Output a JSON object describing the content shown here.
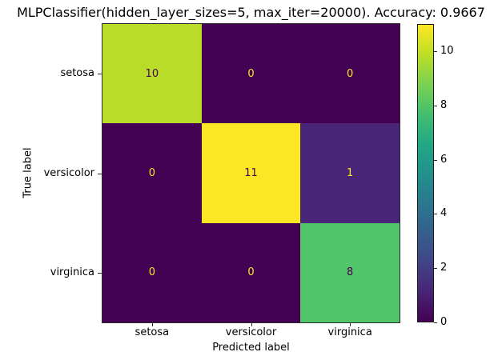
{
  "chart_data": {
    "type": "heatmap",
    "title": "MLPClassifier(hidden_layer_sizes=5, max_iter=20000). Accuracy: 0.9667",
    "xlabel": "Predicted label",
    "ylabel": "True label",
    "x_categories": [
      "setosa",
      "versicolor",
      "virginica"
    ],
    "y_categories": [
      "setosa",
      "versicolor",
      "virginica"
    ],
    "matrix": [
      [
        10,
        0,
        0
      ],
      [
        0,
        11,
        1
      ],
      [
        0,
        0,
        8
      ]
    ],
    "vmin": 0,
    "vmax": 11,
    "colormap": "viridis",
    "grid": false,
    "legend_position": "right-colorbar",
    "colorbar_ticks": [
      0,
      2,
      4,
      6,
      8,
      10
    ],
    "colors": {
      "background": "#ffffff",
      "text": "#000000",
      "tick": "#2a2a2a",
      "annotation_dark": "#440154",
      "annotation_light": "#fde725",
      "cell_colors": [
        [
          "#b9dc28",
          "#440154",
          "#440154"
        ],
        [
          "#440154",
          "#fde725",
          "#482576"
        ],
        [
          "#440154",
          "#440154",
          "#52c469"
        ]
      ],
      "cell_text_colors": [
        [
          "#440154",
          "#fde725",
          "#fde725"
        ],
        [
          "#fde725",
          "#440154",
          "#fde725"
        ],
        [
          "#fde725",
          "#fde725",
          "#440154"
        ]
      ],
      "colormap_stops": [
        "#440154",
        "#482475",
        "#414487",
        "#355f8d",
        "#2a788e",
        "#21918c",
        "#22a884",
        "#44bf70",
        "#7ad151",
        "#bddf26",
        "#fde725"
      ]
    }
  }
}
